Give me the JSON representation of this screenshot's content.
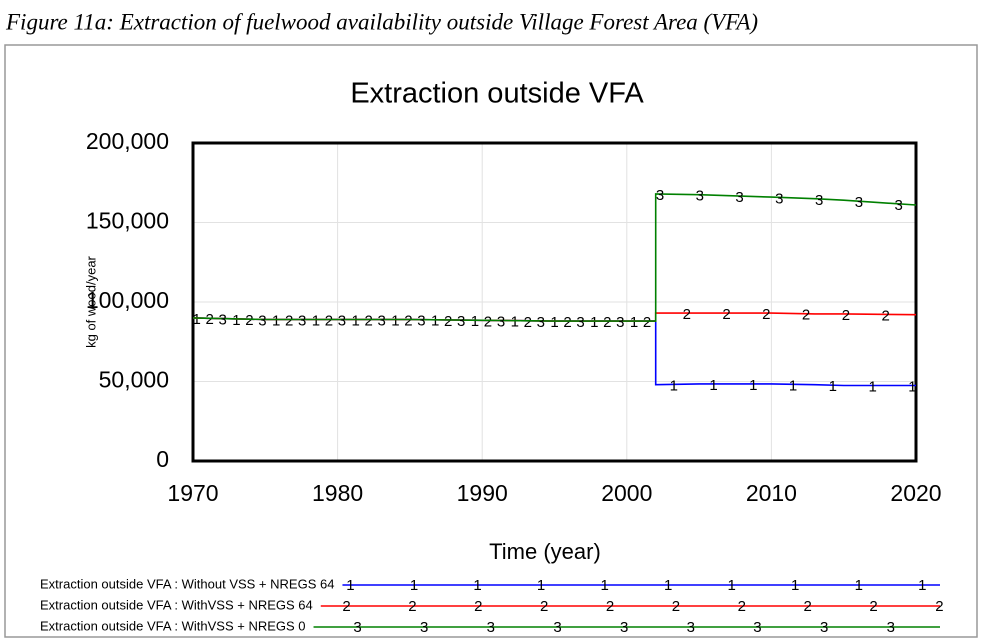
{
  "caption": "Figure 11a: Extraction of fuelwood availability outside Village Forest Area (VFA)",
  "chart_data": {
    "type": "line",
    "title": "Extraction outside VFA",
    "x_label": "Time  (year)",
    "y_label": "kg of wood/year",
    "x": [
      1970,
      1975,
      1980,
      1985,
      1990,
      1995,
      2000,
      2002,
      2002,
      2005,
      2010,
      2013,
      2015,
      2020
    ],
    "series": [
      {
        "name": "Extraction outside VFA : Without VSS + NREGS 64",
        "marker": "1",
        "color": "#0000ff",
        "values": [
          90000,
          89000,
          89000,
          89000,
          88500,
          88000,
          88000,
          88000,
          48000,
          48500,
          48500,
          48000,
          47500,
          47500
        ]
      },
      {
        "name": "Extraction outside VFA : WithVSS + NREGS 64",
        "marker": "2",
        "color": "#ff0000",
        "values": [
          90000,
          89000,
          89000,
          89000,
          88500,
          88000,
          88000,
          88000,
          93000,
          93000,
          93000,
          92500,
          92500,
          92000
        ]
      },
      {
        "name": "Extraction outside VFA : WithVSS + NREGS 0",
        "marker": "3",
        "color": "#008000",
        "values": [
          90000,
          89000,
          89000,
          89000,
          88500,
          88000,
          88000,
          88000,
          168000,
          167500,
          166000,
          165000,
          164000,
          161000
        ]
      }
    ],
    "xlim": [
      1970,
      2020
    ],
    "xticks": [
      1970,
      1980,
      1990,
      2000,
      2010,
      2020
    ],
    "ylim": [
      0,
      200000
    ],
    "yticks": [
      0,
      {
        "value": 50000,
        "label": "50,000"
      },
      {
        "value": 100000,
        "label": "100,000"
      },
      {
        "value": 150000,
        "label": "150,000"
      },
      {
        "value": 200000,
        "label": "200,000"
      }
    ],
    "grid": true
  }
}
